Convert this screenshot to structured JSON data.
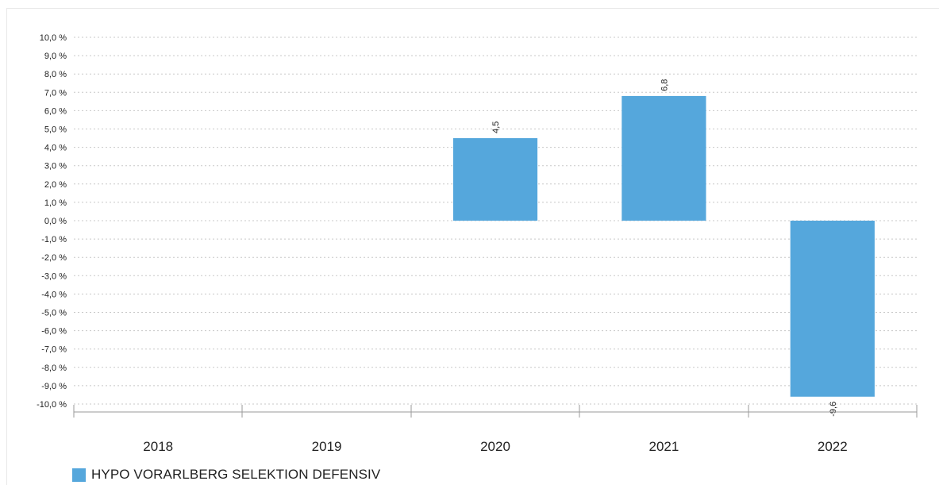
{
  "chart_data": {
    "type": "bar",
    "categories": [
      "2018",
      "2019",
      "2020",
      "2021",
      "2022"
    ],
    "series": [
      {
        "name": "HYPO VORARLBERG SELEKTION DEFENSIV",
        "values": [
          null,
          null,
          4.5,
          6.8,
          -9.6
        ],
        "value_labels": [
          null,
          null,
          "4,5",
          "6,8",
          "-9,6"
        ],
        "color": "#55a7dc"
      }
    ],
    "ylim": [
      -10,
      10
    ],
    "yticks": [
      10,
      9,
      8,
      7,
      6,
      5,
      4,
      3,
      2,
      1,
      0,
      -1,
      -2,
      -3,
      -4,
      -5,
      -6,
      -7,
      -8,
      -9,
      -10
    ],
    "ytick_labels": [
      "10,0 %",
      "9,0 %",
      "8,0 %",
      "7,0 %",
      "6,0 %",
      "5,0 %",
      "4,0 %",
      "3,0 %",
      "2,0 %",
      "1,0 %",
      "0,0 %",
      "-1,0 %",
      "-2,0 %",
      "-3,0 %",
      "-4,0 %",
      "-5,0 %",
      "-6,0 %",
      "-7,0 %",
      "-8,0 %",
      "-9,0 %",
      "-10,0 %"
    ],
    "grid": true,
    "legend": "bottom-left"
  }
}
